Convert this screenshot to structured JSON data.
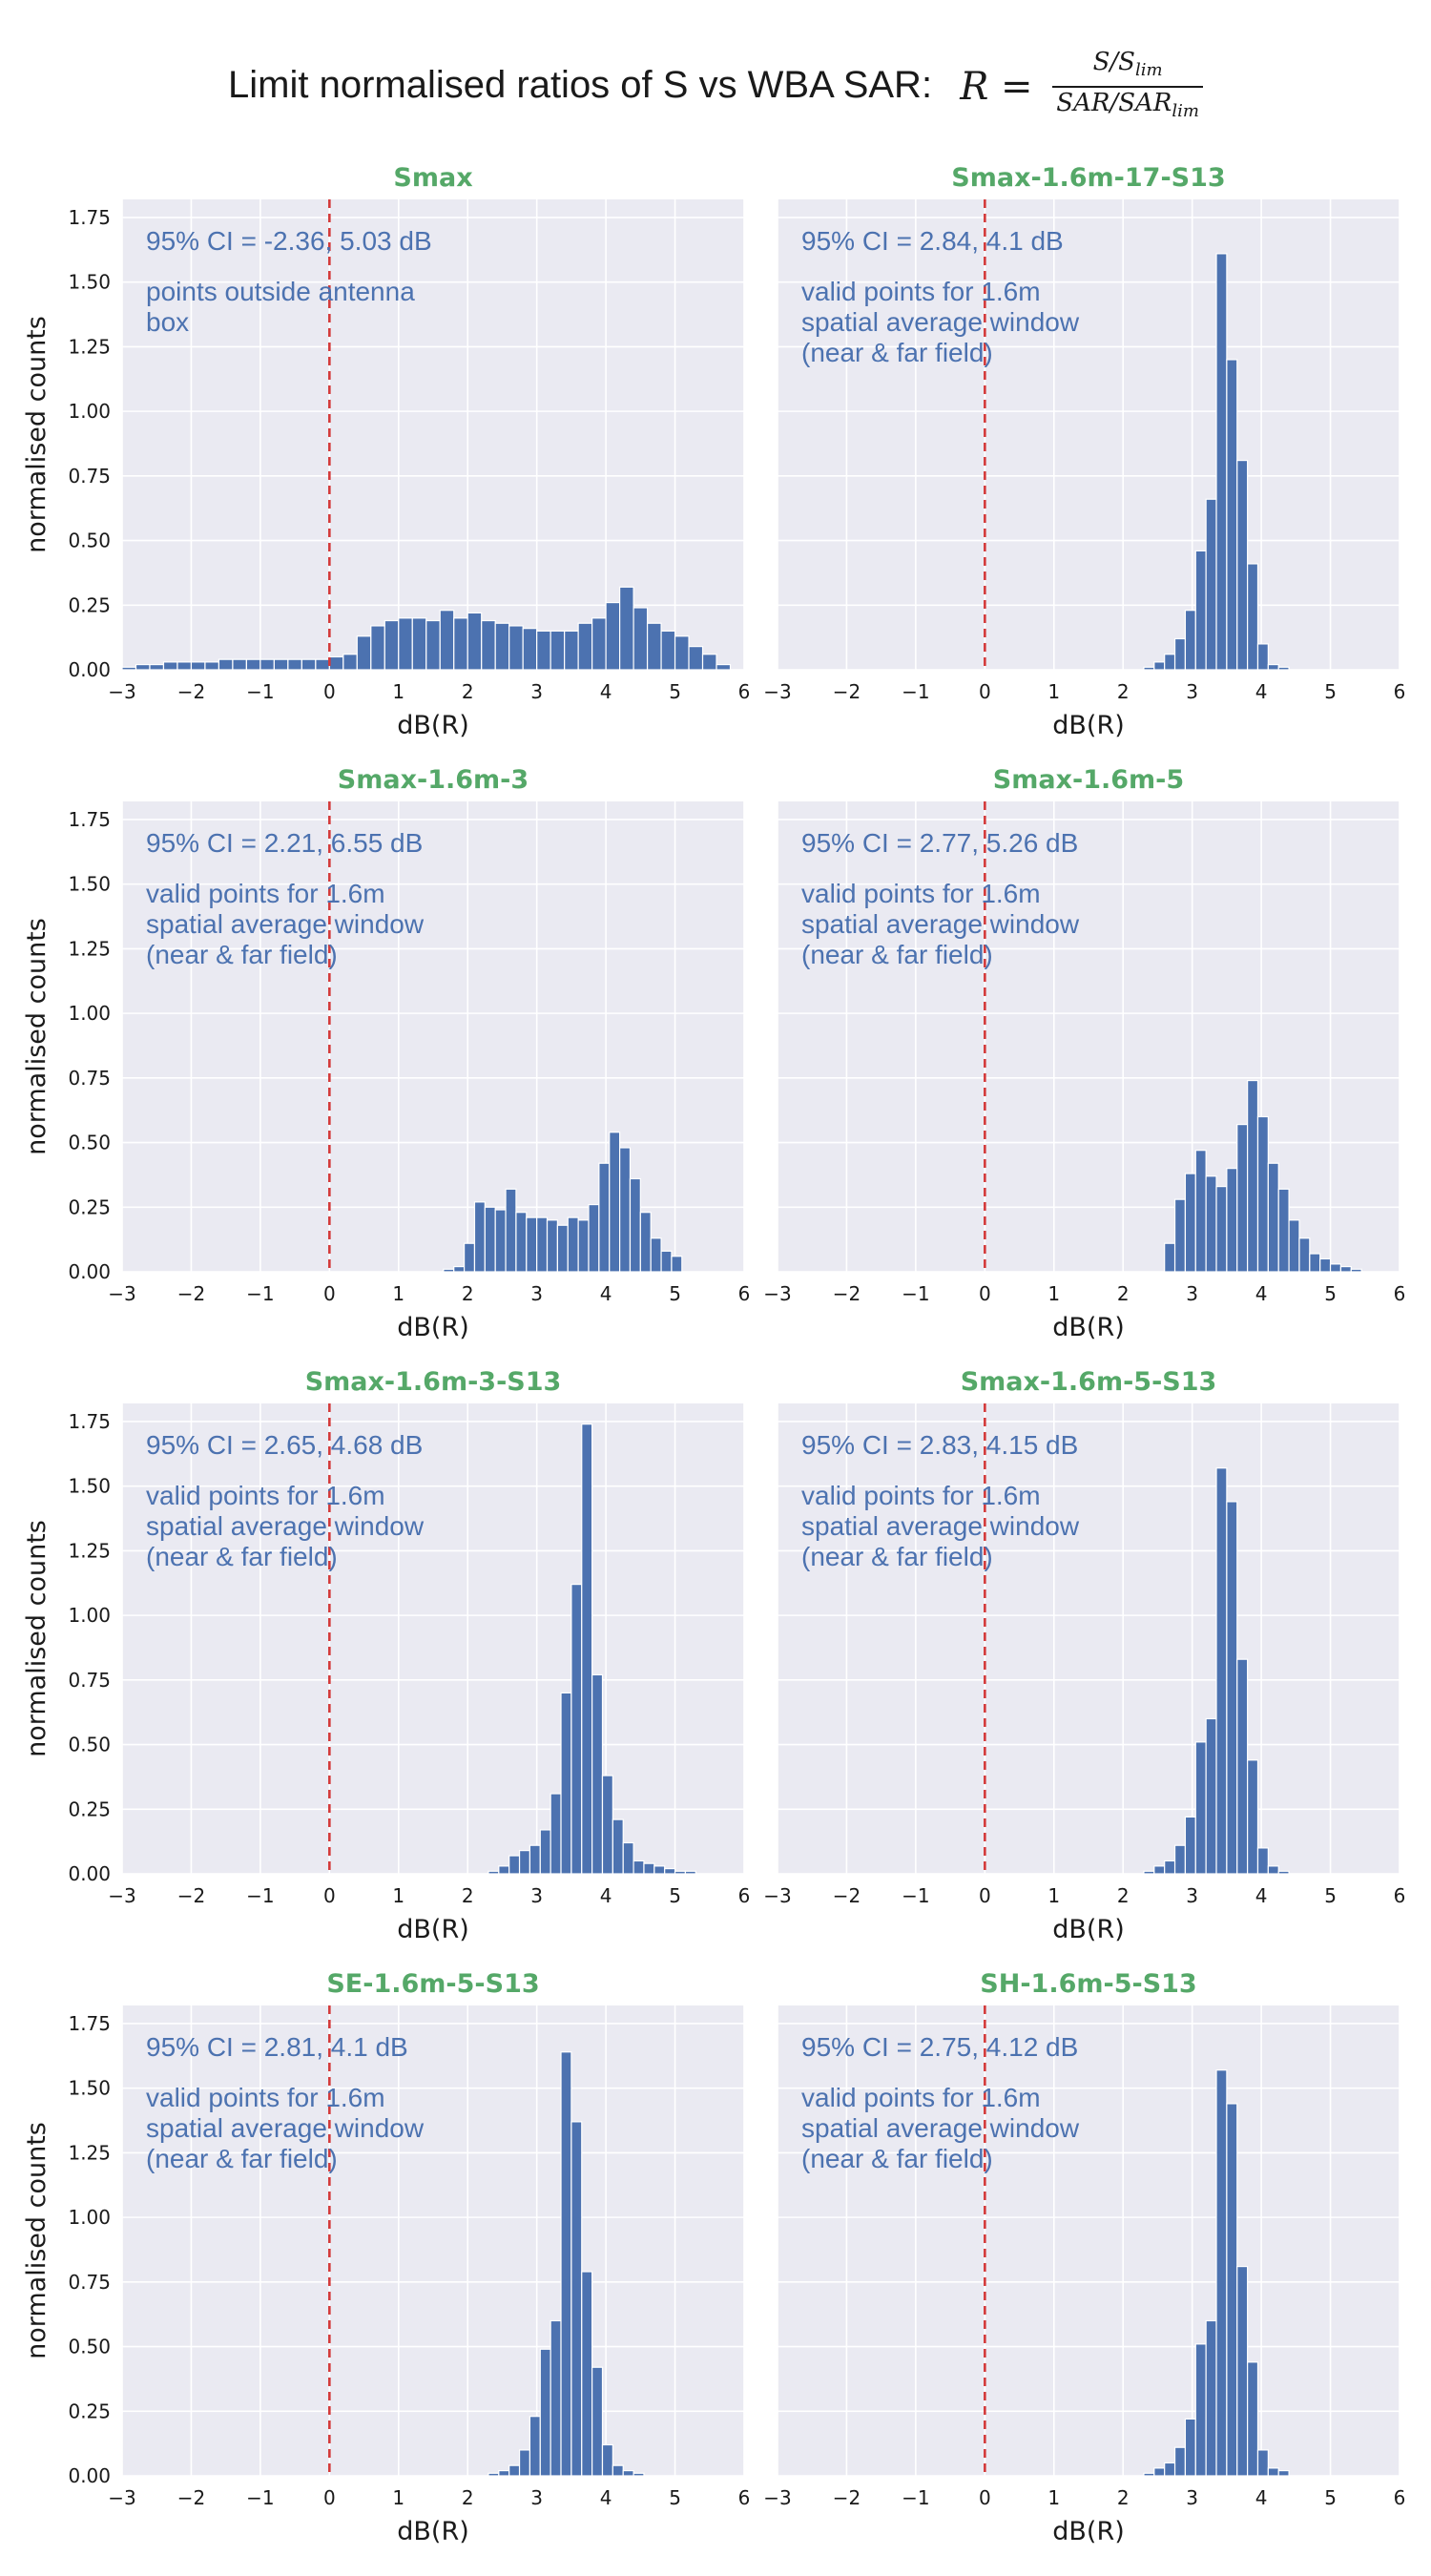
{
  "figure": {
    "title": "Limit normalised ratios of S vs WBA SAR:",
    "formula": {
      "lhs": "R =",
      "numerator": "S/S",
      "numerator_sub": "lim",
      "denominator": "SAR/SAR",
      "denominator_sub": "lim"
    }
  },
  "colors": {
    "panel_bg": "#eaeaf2",
    "grid": "#ffffff",
    "bar": "#4c72b0",
    "bar_edge": "#ffffff",
    "threshold": "#d43a3a",
    "subtitle": "#55a868",
    "annotation": "#4c72b0",
    "text": "#1a1a1a"
  },
  "chart_data": [
    {
      "type": "bar",
      "title": "Smax",
      "xlabel": "dB(R)",
      "ylabel": "normalised counts",
      "xlim": [
        -3,
        6
      ],
      "ylim": [
        0,
        1.82
      ],
      "xticks": [
        "−3",
        "−2",
        "−1",
        "0",
        "1",
        "2",
        "3",
        "4",
        "5",
        "6"
      ],
      "yticks": [
        "0.00",
        "0.25",
        "0.50",
        "0.75",
        "1.00",
        "1.25",
        "1.50",
        "1.75"
      ],
      "bin_start": -3.0,
      "bin_width": 0.2,
      "values": [
        0.01,
        0.02,
        0.02,
        0.03,
        0.03,
        0.03,
        0.03,
        0.04,
        0.04,
        0.04,
        0.04,
        0.04,
        0.04,
        0.04,
        0.04,
        0.05,
        0.06,
        0.13,
        0.17,
        0.19,
        0.2,
        0.2,
        0.19,
        0.23,
        0.2,
        0.22,
        0.19,
        0.18,
        0.17,
        0.16,
        0.15,
        0.15,
        0.15,
        0.18,
        0.2,
        0.26,
        0.32,
        0.24,
        0.18,
        0.15,
        0.13,
        0.09,
        0.06,
        0.02,
        0.0
      ],
      "threshold_x": 0,
      "annotation_ci": "95% CI = -2.36, 5.03 dB",
      "annotation_note": [
        "points outside antenna",
        "box"
      ],
      "grid": true
    },
    {
      "type": "bar",
      "title": "Smax-1.6m-17-S13",
      "xlabel": "dB(R)",
      "ylabel": "",
      "xlim": [
        -3,
        6
      ],
      "ylim": [
        0,
        1.82
      ],
      "xticks": [
        "−3",
        "−2",
        "−1",
        "0",
        "1",
        "2",
        "3",
        "4",
        "5",
        "6"
      ],
      "yticks": [],
      "bin_start": 2.0,
      "bin_width": 0.15,
      "values": [
        0.0,
        0.0,
        0.01,
        0.03,
        0.06,
        0.12,
        0.23,
        0.46,
        0.66,
        1.61,
        1.2,
        0.81,
        0.41,
        0.1,
        0.02,
        0.01,
        0.0,
        0.0,
        0.0,
        0.0
      ],
      "threshold_x": 0,
      "annotation_ci": "95% CI = 2.84, 4.1 dB",
      "annotation_note": [
        "valid points for 1.6m",
        "spatial average window",
        "(near & far field)"
      ],
      "grid": true
    },
    {
      "type": "bar",
      "title": "Smax-1.6m-3",
      "xlabel": "dB(R)",
      "ylabel": "normalised counts",
      "xlim": [
        -3,
        6
      ],
      "ylim": [
        0,
        1.82
      ],
      "xticks": [
        "−3",
        "−2",
        "−1",
        "0",
        "1",
        "2",
        "3",
        "4",
        "5",
        "6"
      ],
      "yticks": [
        "0.00",
        "0.25",
        "0.50",
        "0.75",
        "1.00",
        "1.25",
        "1.50",
        "1.75"
      ],
      "bin_start": 1.5,
      "bin_width": 0.15,
      "values": [
        0.0,
        0.01,
        0.02,
        0.11,
        0.27,
        0.25,
        0.24,
        0.32,
        0.23,
        0.21,
        0.21,
        0.2,
        0.18,
        0.21,
        0.2,
        0.26,
        0.42,
        0.54,
        0.48,
        0.36,
        0.23,
        0.13,
        0.08,
        0.06
      ],
      "threshold_x": 0,
      "annotation_ci": "95% CI = 2.21, 6.55 dB",
      "annotation_note": [
        "valid points for 1.6m",
        "spatial average window",
        "(near & far field)"
      ],
      "grid": true
    },
    {
      "type": "bar",
      "title": "Smax-1.6m-5",
      "xlabel": "dB(R)",
      "ylabel": "",
      "xlim": [
        -3,
        6
      ],
      "ylim": [
        0,
        1.82
      ],
      "xticks": [
        "−3",
        "−2",
        "−1",
        "0",
        "1",
        "2",
        "3",
        "4",
        "5",
        "6"
      ],
      "yticks": [],
      "bin_start": 2.6,
      "bin_width": 0.15,
      "values": [
        0.11,
        0.28,
        0.38,
        0.47,
        0.37,
        0.33,
        0.4,
        0.57,
        0.74,
        0.6,
        0.42,
        0.32,
        0.2,
        0.13,
        0.07,
        0.05,
        0.03,
        0.02,
        0.01
      ],
      "threshold_x": 0,
      "annotation_ci": "95% CI = 2.77, 5.26 dB",
      "annotation_note": [
        "valid points for 1.6m",
        "spatial average window",
        "(near & far field)"
      ],
      "grid": true
    },
    {
      "type": "bar",
      "title": "Smax-1.6m-3-S13",
      "xlabel": "dB(R)",
      "ylabel": "normalised counts",
      "xlim": [
        -3,
        6
      ],
      "ylim": [
        0,
        1.82
      ],
      "xticks": [
        "−3",
        "−2",
        "−1",
        "0",
        "1",
        "2",
        "3",
        "4",
        "5",
        "6"
      ],
      "yticks": [
        "0.00",
        "0.25",
        "0.50",
        "0.75",
        "1.00",
        "1.25",
        "1.50",
        "1.75"
      ],
      "bin_start": 2.0,
      "bin_width": 0.15,
      "values": [
        0.0,
        0.0,
        0.01,
        0.03,
        0.07,
        0.09,
        0.11,
        0.17,
        0.31,
        0.7,
        1.12,
        1.74,
        0.77,
        0.38,
        0.21,
        0.12,
        0.05,
        0.04,
        0.03,
        0.02,
        0.01,
        0.01
      ],
      "threshold_x": 0,
      "annotation_ci": "95% CI = 2.65, 4.68 dB",
      "annotation_note": [
        "valid points for 1.6m",
        "spatial average window",
        "(near & far field)"
      ],
      "grid": true
    },
    {
      "type": "bar",
      "title": "Smax-1.6m-5-S13",
      "xlabel": "dB(R)",
      "ylabel": "",
      "xlim": [
        -3,
        6
      ],
      "ylim": [
        0,
        1.82
      ],
      "xticks": [
        "−3",
        "−2",
        "−1",
        "0",
        "1",
        "2",
        "3",
        "4",
        "5",
        "6"
      ],
      "yticks": [],
      "bin_start": 2.0,
      "bin_width": 0.15,
      "values": [
        0.0,
        0.0,
        0.01,
        0.03,
        0.05,
        0.11,
        0.22,
        0.51,
        0.6,
        1.57,
        1.44,
        0.83,
        0.44,
        0.1,
        0.03,
        0.01,
        0.0,
        0.0,
        0.0,
        0.0
      ],
      "threshold_x": 0,
      "annotation_ci": "95% CI = 2.83, 4.15 dB",
      "annotation_note": [
        "valid points for 1.6m",
        "spatial average window",
        "(near & far field)"
      ],
      "grid": true
    },
    {
      "type": "bar",
      "title": "SE-1.6m-5-S13",
      "xlabel": "dB(R)",
      "ylabel": "normalised counts",
      "xlim": [
        -3,
        6
      ],
      "ylim": [
        0,
        1.82
      ],
      "xticks": [
        "−3",
        "−2",
        "−1",
        "0",
        "1",
        "2",
        "3",
        "4",
        "5",
        "6"
      ],
      "yticks": [
        "0.00",
        "0.25",
        "0.50",
        "0.75",
        "1.00",
        "1.25",
        "1.50",
        "1.75"
      ],
      "bin_start": 2.0,
      "bin_width": 0.15,
      "values": [
        0.0,
        0.0,
        0.01,
        0.02,
        0.04,
        0.1,
        0.23,
        0.49,
        0.6,
        1.64,
        1.37,
        0.79,
        0.42,
        0.12,
        0.04,
        0.02,
        0.01,
        0.0,
        0.0,
        0.0
      ],
      "threshold_x": 0,
      "annotation_ci": "95% CI = 2.81, 4.1 dB",
      "annotation_note": [
        "valid points for 1.6m",
        "spatial average window",
        "(near & far field)"
      ],
      "grid": true
    },
    {
      "type": "bar",
      "title": "SH-1.6m-5-S13",
      "xlabel": "dB(R)",
      "ylabel": "",
      "xlim": [
        -3,
        6
      ],
      "ylim": [
        0,
        1.82
      ],
      "xticks": [
        "−3",
        "−2",
        "−1",
        "0",
        "1",
        "2",
        "3",
        "4",
        "5",
        "6"
      ],
      "yticks": [],
      "bin_start": 2.0,
      "bin_width": 0.15,
      "values": [
        0.0,
        0.0,
        0.01,
        0.03,
        0.05,
        0.11,
        0.22,
        0.51,
        0.6,
        1.57,
        1.44,
        0.81,
        0.44,
        0.1,
        0.03,
        0.02,
        0.0,
        0.0,
        0.0,
        0.0
      ],
      "threshold_x": 0,
      "annotation_ci": "95% CI = 2.75, 4.12 dB",
      "annotation_note": [
        "valid points for 1.6m",
        "spatial average window",
        "(near & far field)"
      ],
      "grid": true
    }
  ]
}
